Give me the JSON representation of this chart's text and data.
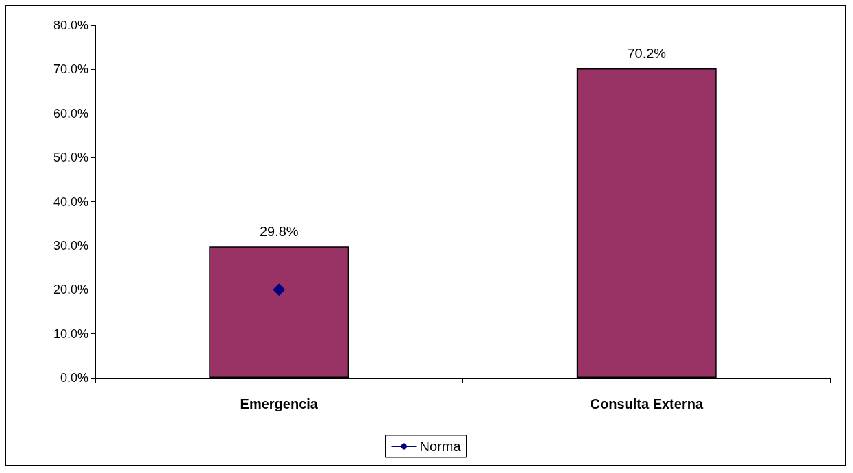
{
  "chart_data": {
    "type": "bar",
    "categories": [
      "Emergencia",
      "Consulta Externa"
    ],
    "series": [
      {
        "color": "#993366",
        "values": [
          29.8,
          70.2
        ],
        "value_labels": [
          "29.8%",
          "70.2%"
        ]
      },
      {
        "type": "line",
        "name": "Norma",
        "color": "#000080",
        "values": [
          20,
          null
        ]
      }
    ],
    "ylim": [
      0,
      80
    ],
    "yticks": [
      {
        "value": 0,
        "label": "0.0%"
      },
      {
        "value": 10,
        "label": "10.0%"
      },
      {
        "value": 20,
        "label": "20.0%"
      },
      {
        "value": 30,
        "label": "30.0%"
      },
      {
        "value": 40,
        "label": "40.0%"
      },
      {
        "value": 50,
        "label": "50.0%"
      },
      {
        "value": 60,
        "label": "60.0%"
      },
      {
        "value": 70,
        "label": "70.0%"
      },
      {
        "value": 80,
        "label": "80.0%"
      }
    ],
    "grid": false,
    "legend": "bottom",
    "marker": "diamond"
  }
}
